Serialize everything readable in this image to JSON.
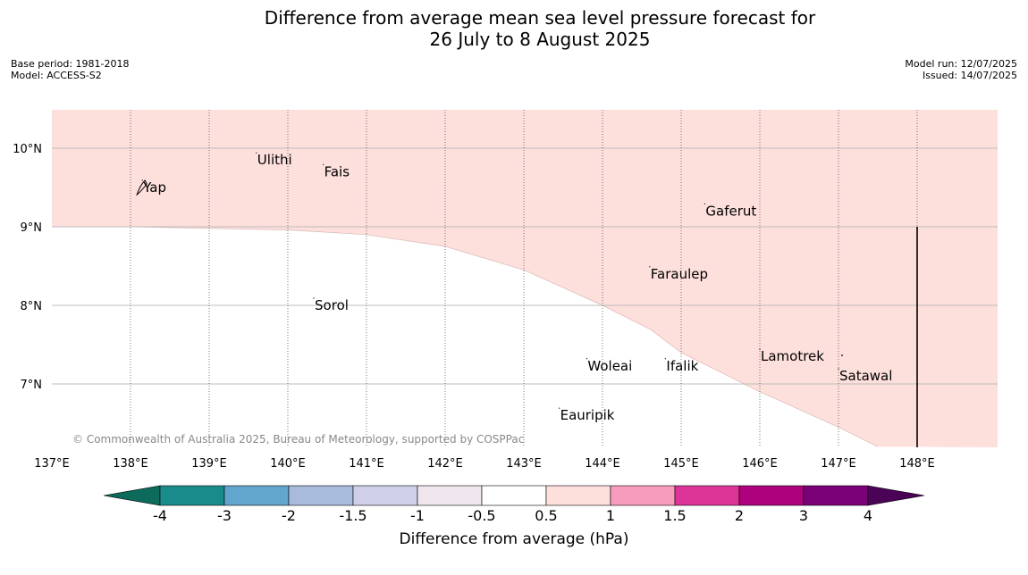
{
  "title": {
    "line1": "Difference from average mean sea level pressure forecast for",
    "line2": "26 July to 8 August 2025"
  },
  "meta_left": {
    "base_period": "Base period: 1981-2018",
    "model": "Model: ACCESS-S2"
  },
  "meta_right": {
    "model_run": "Model run: 12/07/2025",
    "issued": "Issued: 14/07/2025"
  },
  "map": {
    "lon_range": [
      137,
      149
    ],
    "lat_range": [
      6.2,
      10.5
    ],
    "lon_ticks": [
      {
        "value": 137,
        "label": "137°E"
      },
      {
        "value": 138,
        "label": "138°E"
      },
      {
        "value": 139,
        "label": "139°E"
      },
      {
        "value": 140,
        "label": "140°E"
      },
      {
        "value": 141,
        "label": "141°E"
      },
      {
        "value": 142,
        "label": "142°E"
      },
      {
        "value": 143,
        "label": "143°E"
      },
      {
        "value": 144,
        "label": "144°E"
      },
      {
        "value": 145,
        "label": "145°E"
      },
      {
        "value": 146,
        "label": "146°E"
      },
      {
        "value": 147,
        "label": "147°E"
      },
      {
        "value": 148,
        "label": "148°E"
      }
    ],
    "lat_ticks": [
      {
        "value": 10,
        "label": "10°N"
      },
      {
        "value": 9,
        "label": "9°N"
      },
      {
        "value": 8,
        "label": "8°N"
      },
      {
        "value": 7,
        "label": "7°N"
      }
    ],
    "shaded_region": {
      "category": "0.5 to 1",
      "color": "#fddfdc",
      "boundary": [
        [
          137,
          9.0
        ],
        [
          138,
          9.0
        ],
        [
          139,
          8.98
        ],
        [
          140,
          8.96
        ],
        [
          141,
          8.9
        ],
        [
          142,
          8.75
        ],
        [
          143,
          8.45
        ],
        [
          144,
          8.0
        ],
        [
          144.6,
          7.7
        ],
        [
          145,
          7.4
        ],
        [
          145.5,
          7.15
        ],
        [
          146,
          6.9
        ],
        [
          147,
          6.45
        ],
        [
          147.5,
          6.2
        ]
      ]
    },
    "boundary_line": {
      "lon": 148,
      "lat_from": 6.2,
      "lat_to": 9
    },
    "places": [
      {
        "name": "Yap",
        "lon": 138.15,
        "lat": 9.5
      },
      {
        "name": "Ulithi",
        "lon": 139.6,
        "lat": 9.85
      },
      {
        "name": "Fais",
        "lon": 140.45,
        "lat": 9.7
      },
      {
        "name": "Gaferut",
        "lon": 145.3,
        "lat": 9.2
      },
      {
        "name": "Faraulep",
        "lon": 144.6,
        "lat": 8.4
      },
      {
        "name": "Sorol",
        "lon": 140.33,
        "lat": 8.0
      },
      {
        "name": "Lamotrek",
        "lon": 146.0,
        "lat": 7.35
      },
      {
        "name": "Satawal",
        "lon": 147.0,
        "lat": 7.1
      },
      {
        "name": "Woleai",
        "lon": 143.8,
        "lat": 7.23
      },
      {
        "name": "Ifalik",
        "lon": 144.8,
        "lat": 7.23
      },
      {
        "name": "Eauripik",
        "lon": 143.45,
        "lat": 6.6
      }
    ],
    "copyright": "© Commonwealth of Australia 2025, Bureau of Meteorology, supported by COSPPac"
  },
  "colorbar": {
    "label": "Difference from average (hPa)",
    "under_color": "#0c6b5b",
    "over_color": "#4b0357",
    "colors": [
      "#1a8b8b",
      "#62a6cd",
      "#a8bbdc",
      "#cfd0e7",
      "#efe7ed",
      "#ffffff",
      "#fddfdc",
      "#f79cbc",
      "#dd3497",
      "#ae017e",
      "#7a0177"
    ],
    "tick_labels": [
      "-4",
      "-3",
      "-2",
      "-1.5",
      "-1",
      "-0.5",
      "0.5",
      "1",
      "1.5",
      "2",
      "3",
      "4"
    ]
  }
}
